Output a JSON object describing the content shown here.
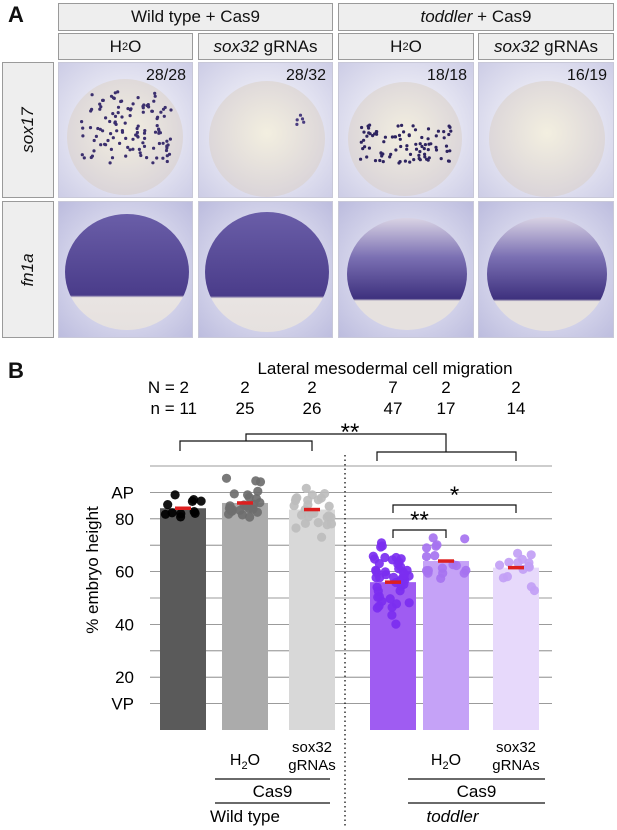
{
  "panel_a": {
    "label": "A",
    "groups": [
      {
        "prefix": "Wild type",
        "suffix": " + Cas9"
      },
      {
        "prefix": "toddler",
        "suffix": " + Cas9"
      }
    ],
    "conditions": [
      {
        "pre": "H",
        "sub": "2",
        "post": "O"
      },
      {
        "pre": "sox32",
        "sub": "",
        "post": " gRNAs"
      },
      {
        "pre": "H",
        "sub": "2",
        "post": "O"
      },
      {
        "pre": "sox32",
        "sub": "",
        "post": " gRNAs"
      }
    ],
    "rows": [
      "sox17",
      "fn1a"
    ],
    "ratios": [
      "28/28",
      "28/32",
      "18/18",
      "16/19"
    ]
  },
  "panel_b": {
    "label": "B"
  },
  "chart_data": {
    "type": "bar",
    "title": "Lateral mesodermal cell migration",
    "ylabel": "% embryo height",
    "y_top_label": "AP",
    "y_bottom_label": "VP",
    "yticks": [
      20,
      40,
      60,
      80
    ],
    "ylim": [
      0,
      100
    ],
    "N_label": "N = ",
    "n_label": "n = ",
    "N": [
      2,
      2,
      2,
      7,
      2,
      2
    ],
    "n": [
      11,
      25,
      26,
      47,
      17,
      14
    ],
    "values": [
      84,
      86,
      83.5,
      56,
      64,
      61.5
    ],
    "bar_colors": [
      "#5a5a5a",
      "#ababab",
      "#d8d8d8",
      "#9f5cf2",
      "#c5a2f7",
      "#e7d9fb"
    ],
    "dot_colors": [
      "#000000",
      "#6e6e6e",
      "#bdbdbd",
      "#7b2ef0",
      "#a673f0",
      "#c2a0f5"
    ],
    "mean_color": "#dd1f1f",
    "x_sublabels": [
      "",
      "H2O",
      "sox32\ngRNAs",
      "",
      "H2O",
      "sox32\ngRNAs"
    ],
    "cas9_label": "Cas9",
    "group_labels": [
      "Wild type",
      "toddler"
    ],
    "significance": [
      {
        "from": 3,
        "to": 4,
        "label": "**"
      },
      {
        "from": 3,
        "to": 5,
        "label": "*"
      },
      {
        "between": "groups",
        "label": "**"
      }
    ]
  }
}
